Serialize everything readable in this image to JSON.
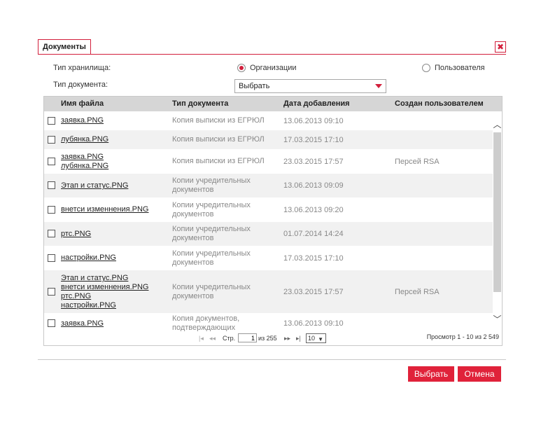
{
  "dialog": {
    "title": "Документы",
    "close_icon": "✖"
  },
  "filters": {
    "storage_type_label": "Тип хранилища:",
    "storage_options": [
      {
        "label": "Организации",
        "selected": true
      },
      {
        "label": "Пользователя",
        "selected": false
      }
    ],
    "doc_type_label": "Тип документа:",
    "doc_type_value": "Выбрать"
  },
  "grid": {
    "columns": [
      "Имя файла",
      "Тип документа",
      "Дата добавления",
      "Создан пользователем"
    ],
    "rows": [
      {
        "files": [
          "заявка.PNG"
        ],
        "doc_type": [
          "Копия выписки из ЕГРЮЛ"
        ],
        "date": "13.06.2013 09:10",
        "user": ""
      },
      {
        "files": [
          "лубянка.PNG"
        ],
        "doc_type": [
          "Копия выписки из ЕГРЮЛ"
        ],
        "date": "17.03.2015 17:10",
        "user": ""
      },
      {
        "files": [
          "заявка.PNG",
          "лубянка.PNG"
        ],
        "doc_type": [
          "Копия выписки из ЕГРЮЛ"
        ],
        "date": "23.03.2015 17:57",
        "user": "Персей RSA"
      },
      {
        "files": [
          "Этап и статус.PNG"
        ],
        "doc_type": [
          "Копии учредительных",
          "документов"
        ],
        "date": "13.06.2013 09:09",
        "user": ""
      },
      {
        "files": [
          "внетси изменнения.PNG"
        ],
        "doc_type": [
          "Копии учредительных",
          "документов"
        ],
        "date": "13.06.2013 09:20",
        "user": ""
      },
      {
        "files": [
          "ртс.PNG"
        ],
        "doc_type": [
          "Копии учредительных",
          "документов"
        ],
        "date": "01.07.2014 14:24",
        "user": ""
      },
      {
        "files": [
          "настройки.PNG"
        ],
        "doc_type": [
          "Копии учредительных",
          "документов"
        ],
        "date": "17.03.2015 17:10",
        "user": ""
      },
      {
        "files": [
          "Этап и статус.PNG",
          "внетси изменнения.PNG",
          "ртс.PNG",
          "настройки.PNG"
        ],
        "doc_type": [
          "Копии учредительных",
          "документов"
        ],
        "date": "23.03.2015 17:57",
        "user": "Персей RSA"
      },
      {
        "files": [
          "заявка.PNG"
        ],
        "doc_type": [
          "Копия документов,",
          "подтверждающих"
        ],
        "date": "13.06.2013 09:10",
        "user": ""
      }
    ],
    "scroll_up_icon": "︿",
    "scroll_down_icon": "﹀"
  },
  "pager": {
    "first_icon": "|◂",
    "prev_icon": "◂◂",
    "page_label": "Стр.",
    "page_value": "1",
    "of_label": "из 255",
    "next_icon": "▸▸",
    "last_icon": "▸|",
    "page_size": "10",
    "info": "Просмотр 1 - 10 из 2 549"
  },
  "actions": {
    "select_label": "Выбрать",
    "cancel_label": "Отмена"
  },
  "colors": {
    "accent": "#e0223a",
    "header_bg": "#d6d6d6",
    "alt_row_bg": "#f1f1f1"
  }
}
